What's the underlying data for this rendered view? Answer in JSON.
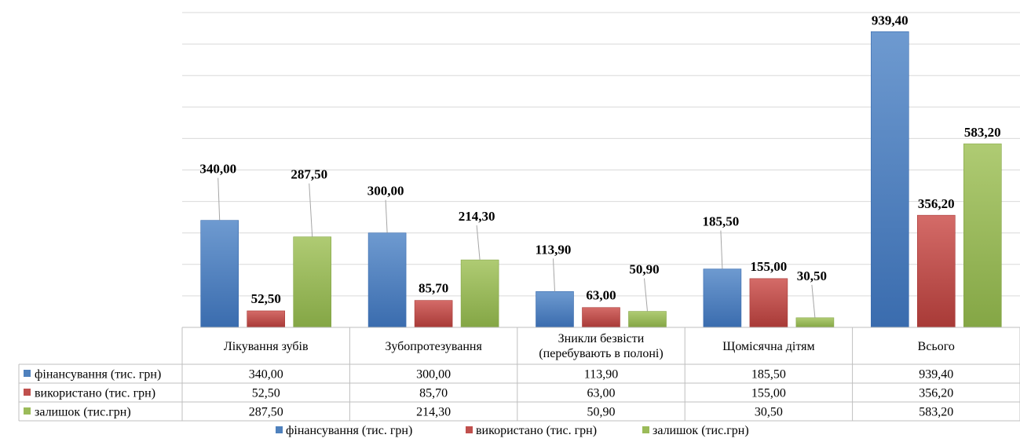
{
  "chart_data": {
    "type": "bar",
    "categories": [
      [
        "Лікування зубів"
      ],
      [
        "Зубопротезування"
      ],
      [
        "Зникли безвісти",
        "(перебувають в полоні)"
      ],
      [
        "Щомісячна дітям"
      ],
      [
        "Всього"
      ]
    ],
    "series": [
      {
        "name": "фінансування (тис. грн)",
        "values": [
          340.0,
          300.0,
          113.9,
          185.5,
          939.4
        ],
        "labels": [
          "340,00",
          "300,00",
          "113,90",
          "185,50",
          "939,40"
        ],
        "color": "#4F81BD",
        "color_light": "#6E9AD0",
        "color_dark": "#3A6CAE"
      },
      {
        "name": "використано (тис. грн)",
        "values": [
          52.5,
          85.7,
          63.0,
          155.0,
          356.2
        ],
        "labels": [
          "52,50",
          "85,70",
          "63,00",
          "155,00",
          "356,20"
        ],
        "color": "#C0504D",
        "color_light": "#D46B68",
        "color_dark": "#A83A37"
      },
      {
        "name": "залишок (тис.грн)",
        "values": [
          287.5,
          214.3,
          50.9,
          30.5,
          583.2
        ],
        "labels": [
          "287,50",
          "214,30",
          "50,90",
          "30,50",
          "583,20"
        ],
        "color": "#9BBB59",
        "color_light": "#AFCB73",
        "color_dark": "#84A645"
      }
    ],
    "ylim": [
      0,
      1000
    ],
    "grid": true,
    "data_table": true,
    "legend_position": "bottom"
  }
}
